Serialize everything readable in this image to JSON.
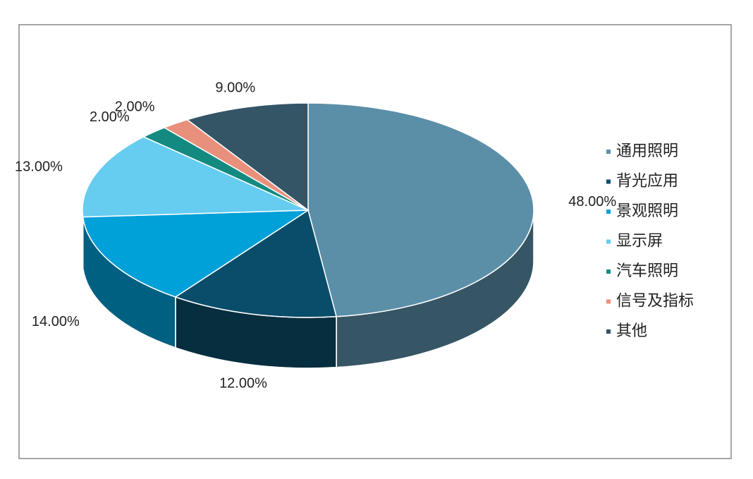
{
  "chart_data": {
    "type": "pie",
    "categories": [
      "通用照明",
      "背光应用",
      "景观照明",
      "显示屏",
      "汽车照明",
      "信号及指标",
      "其他"
    ],
    "values": [
      48,
      12,
      14,
      13,
      2,
      2,
      9
    ],
    "value_labels": [
      "48.00%",
      "12.00%",
      "14.00%",
      "13.00%",
      "2.00%",
      "2.00%",
      "9.00%"
    ],
    "colors": [
      "#5b8fa8",
      "#0a4d6a",
      "#00a0d8",
      "#66ccf0",
      "#138a80",
      "#e8907c",
      "#335566"
    ],
    "legend": "right"
  }
}
